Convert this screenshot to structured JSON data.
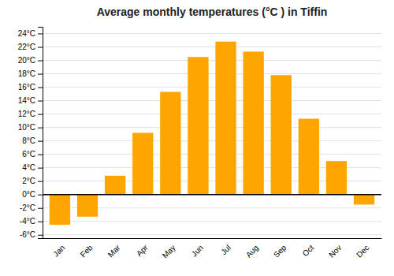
{
  "chart_data": {
    "type": "bar",
    "title": "Average monthly temperatures (°C ) in Tiffin",
    "categories": [
      "Jan",
      "Feb",
      "Mar",
      "Apr",
      "May",
      "Jun",
      "Jul",
      "Aug",
      "Sep",
      "Oct",
      "Nov",
      "Dec"
    ],
    "values": [
      -4.5,
      -3.3,
      2.8,
      9.2,
      15.3,
      20.5,
      22.8,
      21.3,
      17.8,
      11.3,
      5.0,
      -1.5
    ],
    "color": "#FFA500",
    "ylim": [
      -6.5,
      25
    ],
    "yticks": [
      {
        "value": -6,
        "label": "-6°C"
      },
      {
        "value": -4,
        "label": "-4°C"
      },
      {
        "value": -2,
        "label": "-2°C"
      },
      {
        "value": 0,
        "label": "0°C"
      },
      {
        "value": 2,
        "label": "2°C"
      },
      {
        "value": 4,
        "label": "4°C"
      },
      {
        "value": 6,
        "label": "6°C"
      },
      {
        "value": 8,
        "label": "8°C"
      },
      {
        "value": 10,
        "label": "10°C"
      },
      {
        "value": 12,
        "label": "12°C"
      },
      {
        "value": 14,
        "label": "14°C"
      },
      {
        "value": 16,
        "label": "16°C"
      },
      {
        "value": 18,
        "label": "18°C"
      },
      {
        "value": 20,
        "label": "20°C"
      },
      {
        "value": 22,
        "label": "22°C"
      },
      {
        "value": 24,
        "label": "24°C"
      }
    ],
    "grid": true
  }
}
